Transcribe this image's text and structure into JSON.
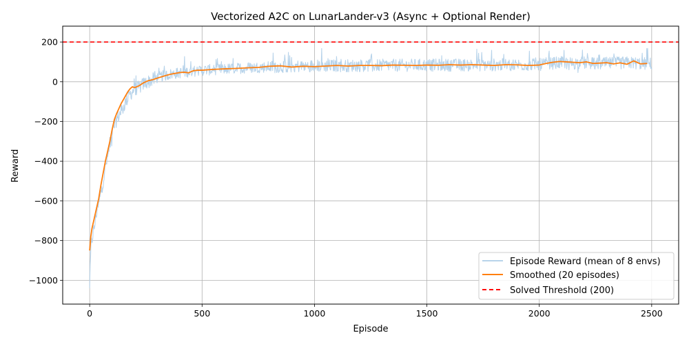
{
  "chart_data": {
    "type": "line",
    "title": "Vectorized A2C on LunarLander-v3 (Async + Optional Render)",
    "xlabel": "Episode",
    "ylabel": "Reward",
    "xlim": [
      -120,
      2620
    ],
    "ylim": [
      -1120,
      280
    ],
    "xticks": [
      0,
      500,
      1000,
      1500,
      2000,
      2500
    ],
    "yticks": [
      -1000,
      -800,
      -600,
      -400,
      -200,
      0,
      200
    ],
    "grid": true,
    "legend_position": "lower-right",
    "colors": {
      "raw": "#b7d3ea",
      "smoothed": "#ff7f0e",
      "threshold": "#ff0000",
      "grid": "#b0b0b0"
    },
    "series": [
      {
        "name": "Episode Reward (mean of 8 envs)",
        "style": "raw",
        "x": [
          0,
          3,
          6,
          10,
          15,
          20,
          25,
          30,
          40,
          50,
          60,
          70,
          80,
          90,
          100,
          110,
          120,
          130,
          140,
          150,
          160,
          175,
          190,
          200,
          220,
          240,
          260,
          280,
          300,
          330,
          360,
          400,
          450,
          500,
          600,
          700,
          800,
          900,
          1000,
          1200,
          1400,
          1600,
          1800,
          2000,
          2050,
          2100,
          2150,
          2200,
          2250,
          2300,
          2350,
          2400,
          2450,
          2500
        ],
        "y": [
          -1050,
          -930,
          -820,
          -800,
          -760,
          -740,
          -700,
          -660,
          -620,
          -560,
          -500,
          -430,
          -380,
          -320,
          -260,
          -220,
          -190,
          -170,
          -150,
          -130,
          -100,
          -70,
          -50,
          -35,
          -30,
          -10,
          0,
          10,
          20,
          30,
          38,
          45,
          52,
          58,
          64,
          70,
          75,
          78,
          80,
          82,
          83,
          84,
          85,
          86,
          92,
          96,
          93,
          95,
          90,
          92,
          94,
          96,
          92,
          90
        ]
      },
      {
        "name": "Smoothed (20 episodes)",
        "style": "smoothed",
        "x": [
          0,
          5,
          10,
          20,
          30,
          40,
          50,
          60,
          70,
          80,
          90,
          100,
          110,
          120,
          130,
          140,
          150,
          160,
          170,
          180,
          190,
          200,
          220,
          240,
          260,
          280,
          300,
          320,
          340,
          360,
          380,
          400,
          420,
          440,
          460,
          480,
          500,
          550,
          600,
          650,
          700,
          750,
          800,
          850,
          900,
          950,
          1000,
          1050,
          1100,
          1150,
          1200,
          1250,
          1300,
          1350,
          1400,
          1450,
          1500,
          1550,
          1600,
          1650,
          1700,
          1750,
          1800,
          1850,
          1900,
          1950,
          2000,
          2030,
          2060,
          2090,
          2120,
          2150,
          2180,
          2210,
          2240,
          2270,
          2300,
          2330,
          2360,
          2390,
          2420,
          2450,
          2480
        ],
        "y": [
          -850,
          -780,
          -740,
          -690,
          -640,
          -590,
          -520,
          -460,
          -400,
          -350,
          -300,
          -240,
          -190,
          -160,
          -135,
          -110,
          -90,
          -70,
          -50,
          -35,
          -25,
          -30,
          -20,
          -5,
          5,
          10,
          18,
          25,
          32,
          38,
          42,
          46,
          48,
          45,
          55,
          58,
          58,
          62,
          65,
          67,
          70,
          72,
          78,
          80,
          74,
          78,
          76,
          79,
          82,
          79,
          82,
          82,
          81,
          84,
          83,
          82,
          84,
          83,
          86,
          84,
          86,
          84,
          82,
          86,
          85,
          82,
          84,
          92,
          98,
          102,
          100,
          98,
          96,
          100,
          92,
          94,
          96,
          90,
          95,
          88,
          105,
          90,
          92
        ]
      },
      {
        "name": "Solved Threshold (200)",
        "style": "threshold",
        "x": [
          -120,
          2620
        ],
        "y": [
          200,
          200
        ]
      }
    ]
  }
}
